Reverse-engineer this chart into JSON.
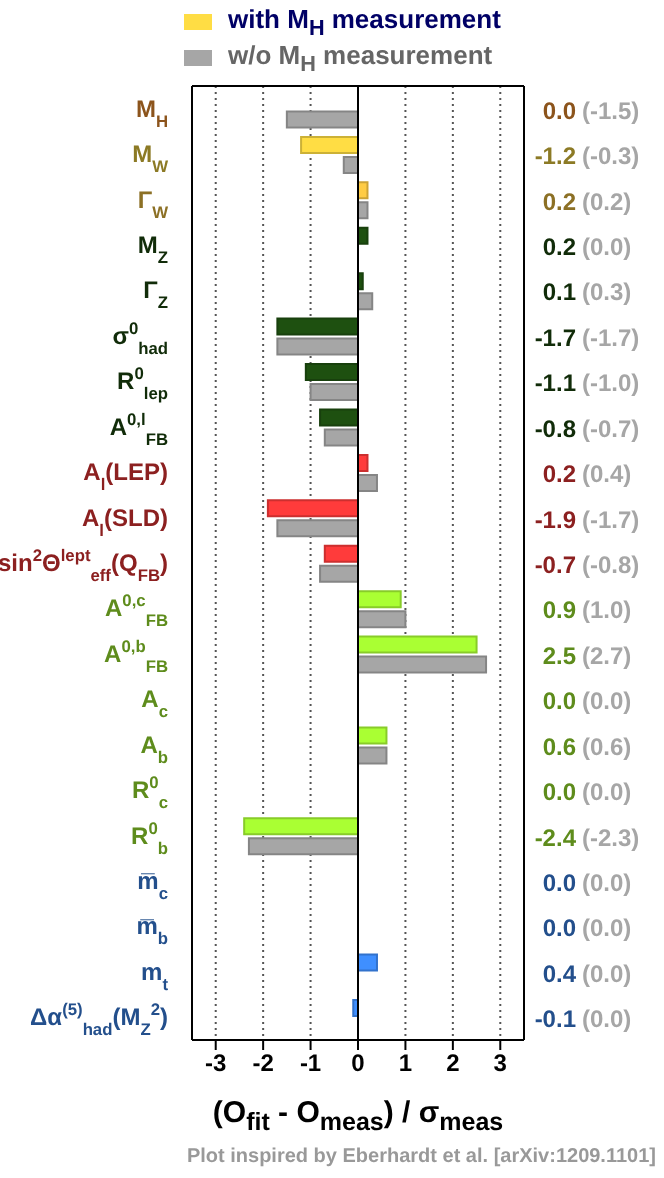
{
  "chart_data": {
    "type": "bar",
    "orientation": "horizontal",
    "xlabel": "(O$_{fit}$ - O$_{meas}$) / σ$_{meas}$",
    "annotations": [
      "Plot inspired by Eberhardt et al. [arXiv:1209.1101]"
    ],
    "categories": [
      "M$_{H}$",
      "M$_{W}$",
      "Γ$_{W}$",
      "M$_{Z}$",
      "Γ$_{Z}$",
      "σ$^{0}$$_{had}$",
      "R$^{0}$$_{lep}$",
      "A$^{0,l}$$_{FB}$",
      "A$_{l}$(LEP)",
      "A$_{l}$(SLD)",
      "sin$^{2}$Θ$^{lept}$$_{eff}$(Q$_{FB}$)",
      "A$^{0,c}$$_{FB}$",
      "A$^{0,b}$$_{FB}$",
      "A$_{c}$",
      "A$_{b}$",
      "R$^{0}$$_{c}$",
      "R$^{0}$$_{b}$",
      "m̅$_{c}$",
      "m̅$_{b}$",
      "m$_{t}$",
      "Δα$^{(5)}$$_{had}$(M$_{Z}$$^{2}$)"
    ],
    "series": [
      {
        "name": "with M$_{H}$ measurement",
        "color": "#ffdd44",
        "colors": [
          "#ff9933",
          "#ffdd44",
          "#ffcc44",
          "#1e5010",
          "#1e5010",
          "#1e5010",
          "#1e5010",
          "#1e5010",
          "#ff3b3b",
          "#ff3b3b",
          "#ff3b3b",
          "#aaff33",
          "#aaff33",
          "#aaff33",
          "#aaff33",
          "#aaff33",
          "#aaff33",
          "#3f8fff",
          "#3f8fff",
          "#3f8fff",
          "#3f8fff"
        ],
        "values": [
          0.0,
          -1.2,
          0.2,
          0.2,
          0.1,
          -1.7,
          -1.1,
          -0.8,
          0.2,
          -1.9,
          -0.7,
          0.9,
          2.5,
          0.0,
          0.6,
          0.0,
          -2.4,
          0.0,
          0.0,
          0.4,
          -0.1
        ],
        "value_labels": [
          "0.0",
          "-1.2",
          "0.2",
          "0.2",
          "0.1",
          "-1.7",
          "-1.1",
          "-0.8",
          "0.2",
          "-1.9",
          "-0.7",
          "0.9",
          "2.5",
          "0.0",
          "0.6",
          "0.0",
          "-2.4",
          "0.0",
          "0.0",
          "0.4",
          "-0.1"
        ]
      },
      {
        "name": "w/o M$_{H}$ measurement",
        "color": "#a6a6a6",
        "values": [
          -1.5,
          -0.3,
          0.2,
          0.0,
          0.3,
          -1.7,
          -1.0,
          -0.7,
          0.4,
          -1.7,
          -0.8,
          1.0,
          2.7,
          0.0,
          0.6,
          0.0,
          -2.3,
          0.0,
          0.0,
          0.0,
          0.0
        ],
        "value_labels": [
          "(-1.5)",
          "(-0.3)",
          "(0.2)",
          "(0.0)",
          "(0.3)",
          "(-1.7)",
          "(-1.0)",
          "(-0.7)",
          "(0.4)",
          "(-1.7)",
          "(-0.8)",
          "(1.0)",
          "(2.7)",
          "(0.0)",
          "(0.6)",
          "(0.0)",
          "(-2.3)",
          "(0.0)",
          "(0.0)",
          "(0.0)",
          "(0.0)"
        ]
      }
    ],
    "xlim": [
      -3.5,
      3.5
    ],
    "xticks": [
      -3,
      -2,
      -1,
      0,
      1,
      2,
      3
    ],
    "ref_lines": [
      {
        "axis": "x",
        "value": 0,
        "color": "#000000"
      }
    ],
    "grid": "x",
    "legend": "top"
  }
}
